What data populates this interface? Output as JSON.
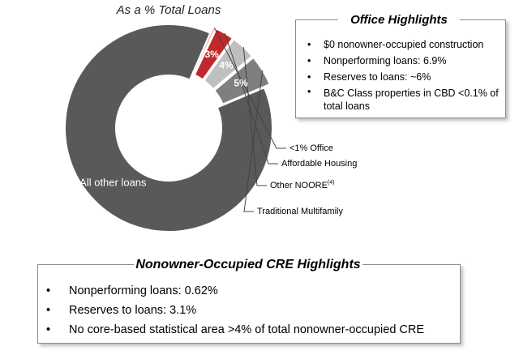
{
  "chart_data": {
    "type": "pie",
    "title": "As a % Total Loans",
    "slices": [
      {
        "label": "All other loans",
        "value": 91,
        "color": "#595959",
        "data_label": ""
      },
      {
        "label": "<1% Office",
        "value": 0.5,
        "color": "#f2b8b8",
        "data_label": ""
      },
      {
        "label": "Affordable Housing",
        "value": 3,
        "color": "#c0292b",
        "data_label": "3%"
      },
      {
        "label": "Other NOORE",
        "label_sup": "(4)",
        "value": 4,
        "color": "#bfbfbf",
        "data_label": "4%"
      },
      {
        "label": "Traditional Multifamily",
        "value": 5,
        "color": "#7f7f7f",
        "data_label": "5%"
      }
    ]
  },
  "office_highlights": {
    "title": "Office Highlights",
    "items": [
      "$0 nonowner-occupied construction",
      "Nonperforming loans: 6.9%",
      "Reserves to loans: ~6%",
      "B&C Class properties in CBD <0.1% of total loans"
    ]
  },
  "cre_highlights": {
    "title": "Nonowner-Occupied CRE Highlights",
    "items": [
      "Nonperforming loans: 0.62%",
      "Reserves to loans: 3.1%",
      "No core-based statistical area >4% of total nonowner-occupied CRE"
    ]
  }
}
